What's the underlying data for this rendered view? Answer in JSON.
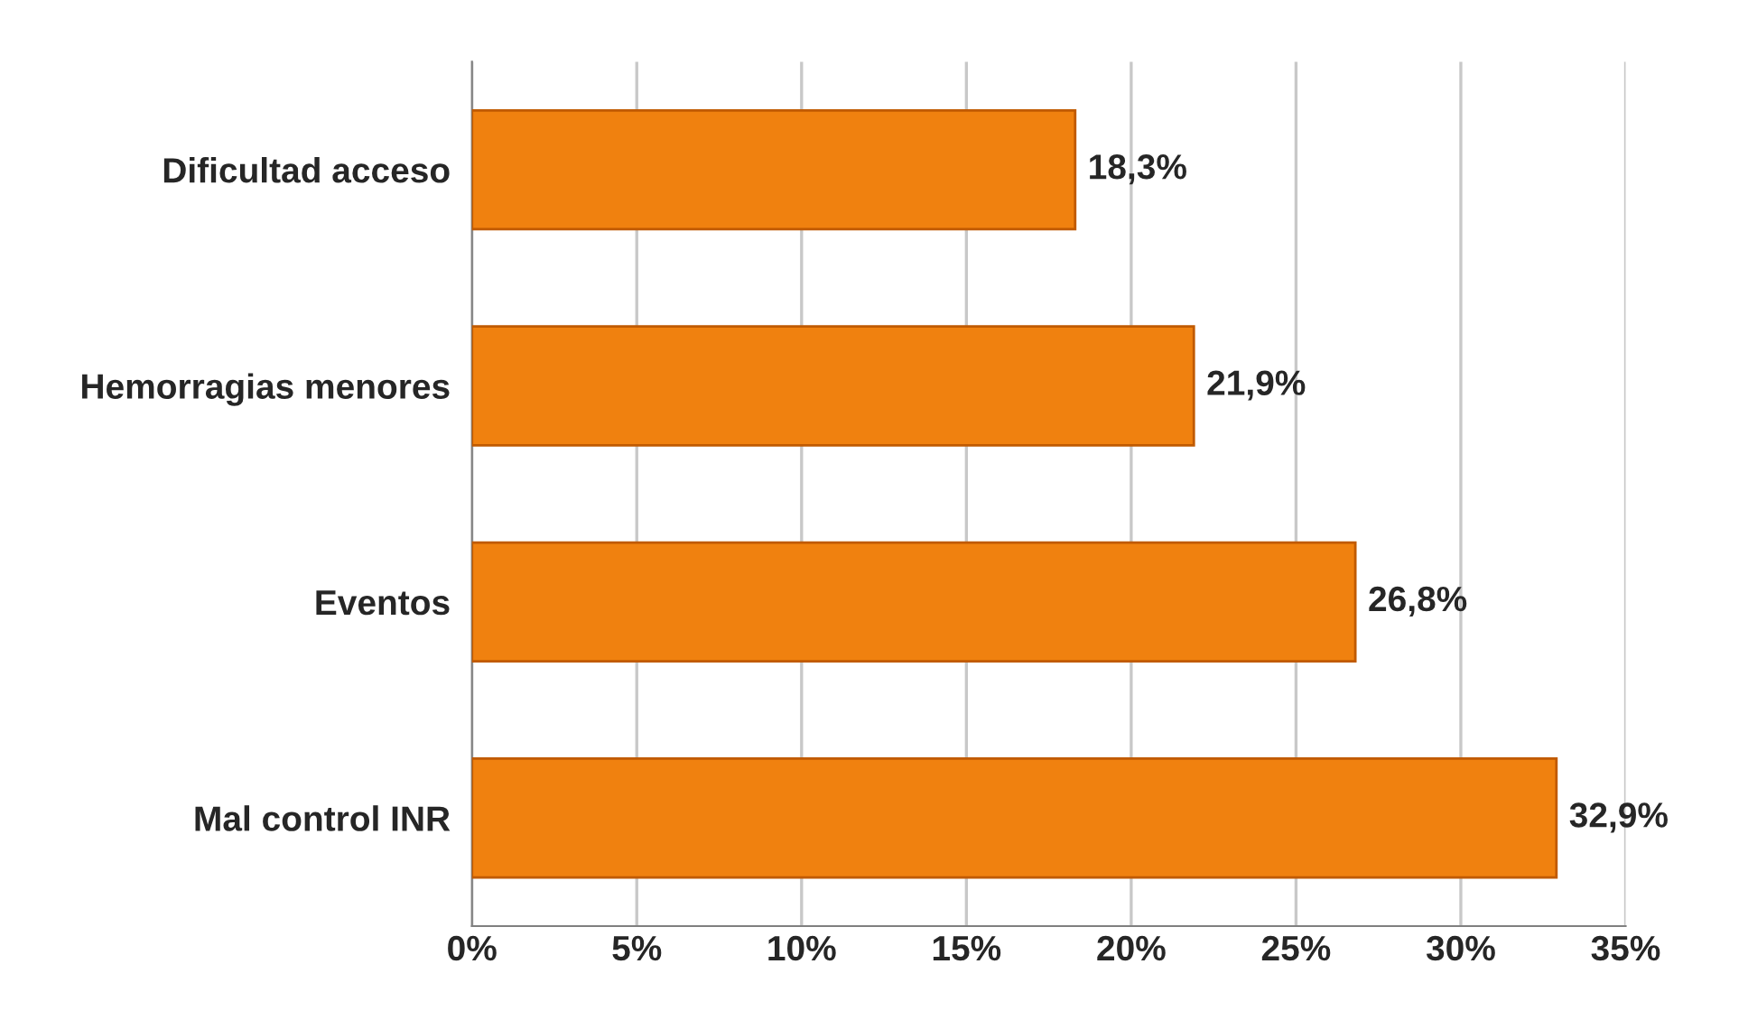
{
  "chart_data": {
    "type": "bar",
    "orientation": "horizontal",
    "categories": [
      "Dificultad acceso",
      "Hemorragias menores",
      "Eventos",
      "Mal control INR"
    ],
    "values": [
      18.3,
      21.9,
      26.8,
      32.9
    ],
    "value_labels": [
      "18,3%",
      "21,9%",
      "26,8%",
      "32,9%"
    ],
    "color": "#f0810f",
    "xlim": [
      0,
      35
    ],
    "xticks": [
      {
        "value": 0,
        "label": "0%"
      },
      {
        "value": 5,
        "label": "5%"
      },
      {
        "value": 10,
        "label": "10%"
      },
      {
        "value": 15,
        "label": "15%"
      },
      {
        "value": 20,
        "label": "20%"
      },
      {
        "value": 25,
        "label": "25%"
      },
      {
        "value": 30,
        "label": "30%"
      },
      {
        "value": 35,
        "label": "35%"
      }
    ],
    "grid": "x"
  }
}
